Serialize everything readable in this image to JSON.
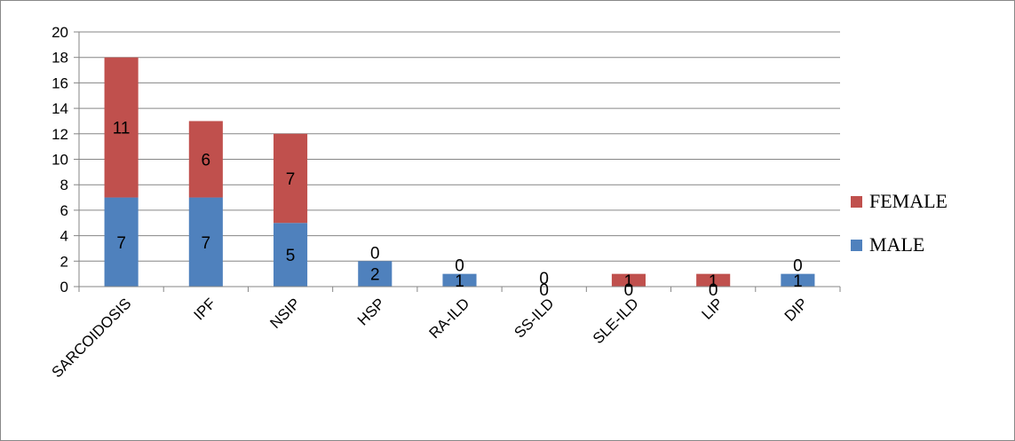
{
  "chart_data": {
    "type": "bar",
    "stacked": true,
    "categories": [
      "SARCOIDOSIS",
      "IPF",
      "NSIP",
      "HSP",
      "RA-ILD",
      "SS-ILD",
      "SLE-ILD",
      "LIP",
      "DIP"
    ],
    "series": [
      {
        "name": "MALE",
        "values": [
          7,
          7,
          5,
          2,
          1,
          0,
          0,
          0,
          1
        ]
      },
      {
        "name": "FEMALE",
        "values": [
          11,
          6,
          7,
          0,
          0,
          0,
          1,
          1,
          0
        ]
      }
    ],
    "ylim": [
      0,
      20
    ],
    "yticks": [
      0,
      2,
      4,
      6,
      8,
      10,
      12,
      14,
      16,
      18,
      20
    ],
    "grid": true,
    "legend": "right",
    "colors": {
      "MALE": "#4f81bd",
      "FEMALE": "#c0504d"
    }
  }
}
